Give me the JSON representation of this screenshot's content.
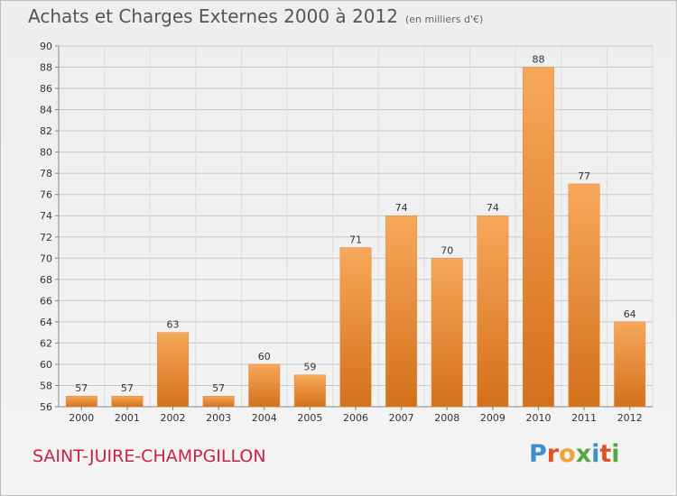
{
  "header": {
    "title": "Achats et Charges Externes 2000 à 2012",
    "subtitle": "(en milliers d'€)"
  },
  "footer": {
    "commune": "SAINT-JUIRE-CHAMPGILLON",
    "logo_letters": [
      "P",
      "r",
      "o",
      "x",
      "i",
      "t",
      "i"
    ],
    "logo_colors": [
      "#3f8fd0",
      "#e0522a",
      "#f2a23a",
      "#57a845",
      "#3f8fd0",
      "#e0522a",
      "#57a845"
    ]
  },
  "colors": {
    "bar_light": "#f7a85a",
    "bar_dark": "#d4701c",
    "grid": "#c8c8c8",
    "axis_text": "#333333",
    "commune_text": "#cc1f4a"
  },
  "chart_data": {
    "type": "bar",
    "categories": [
      "2000",
      "2001",
      "2002",
      "2003",
      "2004",
      "2005",
      "2006",
      "2007",
      "2008",
      "2009",
      "2010",
      "2011",
      "2012"
    ],
    "values": [
      57,
      57,
      63,
      57,
      60,
      59,
      71,
      74,
      70,
      74,
      88,
      77,
      64
    ],
    "data_labels": [
      "57",
      "57",
      "63",
      "57",
      "60",
      "59",
      "71",
      "74",
      "70",
      "74",
      "88",
      "77",
      "64"
    ],
    "ylim": [
      56,
      90
    ],
    "yticks": [
      56,
      58,
      60,
      62,
      64,
      66,
      68,
      70,
      72,
      74,
      76,
      78,
      80,
      82,
      84,
      86,
      88,
      90
    ],
    "grid": true,
    "title": "Achats et Charges Externes 2000 à 2012",
    "xlabel": "",
    "ylabel": ""
  }
}
